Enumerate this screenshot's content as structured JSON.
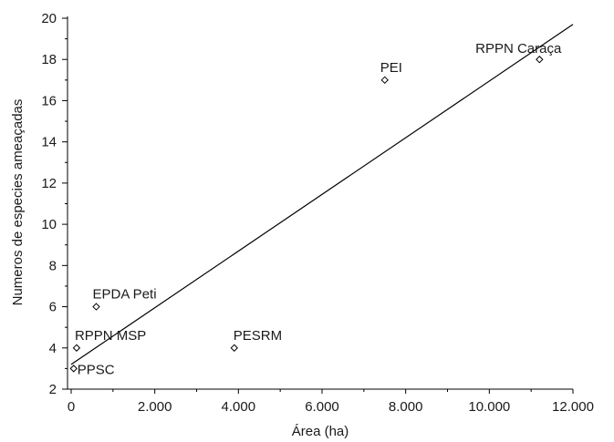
{
  "chart_data": {
    "type": "scatter",
    "title": "",
    "xlabel": "Área (ha)",
    "ylabel": "Numeros de especies ameaçadas",
    "xlim": [
      0,
      12000
    ],
    "ylim": [
      2,
      20
    ],
    "x_ticks": [
      0,
      2000,
      4000,
      6000,
      8000,
      10000,
      12000
    ],
    "x_tick_labels": [
      "0",
      "2.000",
      "4.000",
      "6.000",
      "8.000",
      "10.000",
      "12.000"
    ],
    "y_ticks": [
      2,
      4,
      6,
      8,
      10,
      12,
      14,
      16,
      18,
      20
    ],
    "y_tick_labels": [
      "2",
      "4",
      "6",
      "8",
      "10",
      "12",
      "14",
      "16",
      "18",
      "20"
    ],
    "grid": false,
    "marker": "diamond-open",
    "points": [
      {
        "label": "PPSC",
        "x": 60,
        "y": 3
      },
      {
        "label": "RPPN MSP",
        "x": 130,
        "y": 4
      },
      {
        "label": "EPDA Peti",
        "x": 600,
        "y": 6
      },
      {
        "label": "PESRM",
        "x": 3900,
        "y": 4
      },
      {
        "label": "PEI",
        "x": 7500,
        "y": 17
      },
      {
        "label": "RPPN Caraça",
        "x": 11200,
        "y": 18
      }
    ],
    "trendline": {
      "type": "linear",
      "x": [
        0,
        12000
      ],
      "y": [
        3.2,
        19.7
      ]
    }
  }
}
